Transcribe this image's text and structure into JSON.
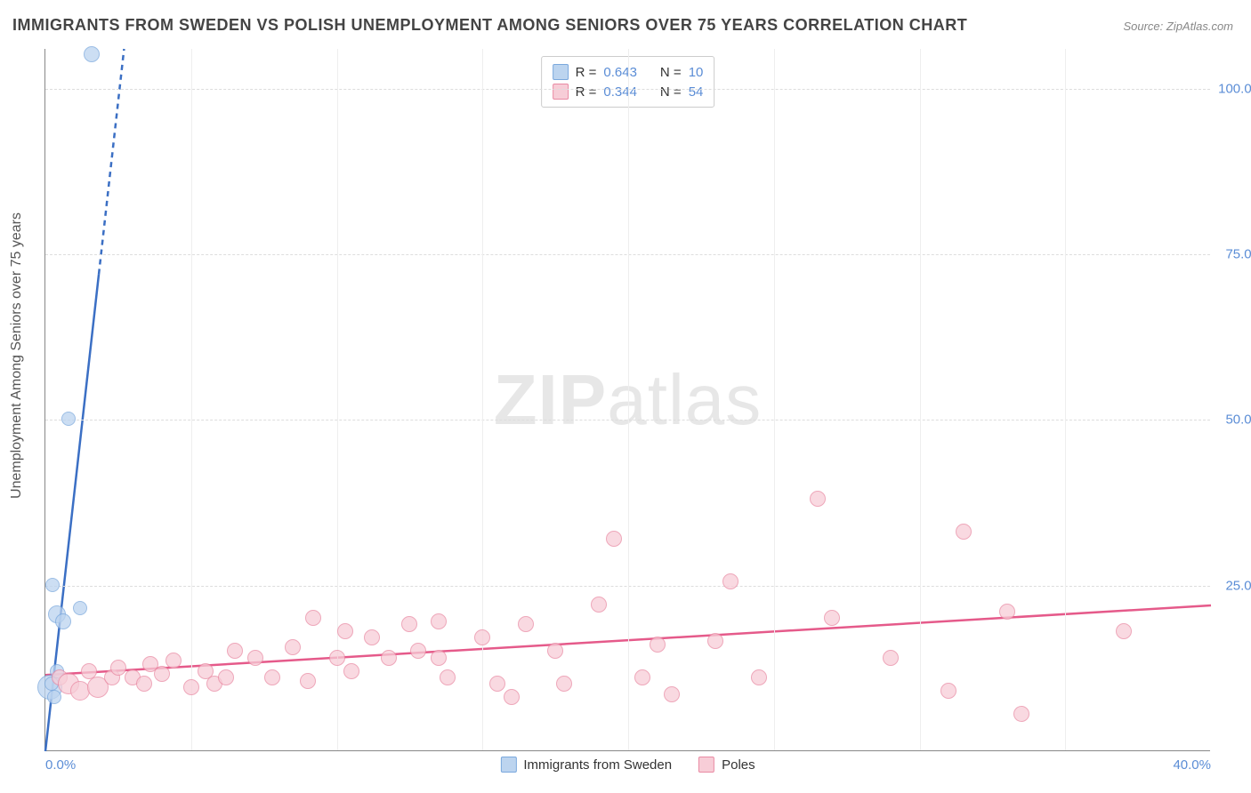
{
  "title": "IMMIGRANTS FROM SWEDEN VS POLISH UNEMPLOYMENT AMONG SENIORS OVER 75 YEARS CORRELATION CHART",
  "source_label": "Source: ZipAtlas.com",
  "ylabel": "Unemployment Among Seniors over 75 years",
  "watermark_bold": "ZIP",
  "watermark_rest": "atlas",
  "chart": {
    "type": "scatter",
    "background_color": "#ffffff",
    "grid_color": "#dddddd",
    "axis_color": "#888888",
    "tick_color": "#5b8dd6",
    "tick_fontsize": 15,
    "label_fontsize": 16,
    "xlim": [
      0,
      40
    ],
    "ylim": [
      0,
      106
    ],
    "xticks": [
      0,
      40
    ],
    "xtick_labels": [
      "0.0%",
      "40.0%"
    ],
    "yticks": [
      25,
      50,
      75,
      100
    ],
    "ytick_labels": [
      "25.0%",
      "50.0%",
      "75.0%",
      "100.0%"
    ],
    "series": [
      {
        "name": "Immigrants from Sweden",
        "marker_fill": "#bcd4ef",
        "marker_stroke": "#7aa8dd",
        "marker_opacity": 0.75,
        "trend_color": "#3b6fc4",
        "trend_width": 2.5,
        "trend_dash_after_y": 72,
        "R": "0.643",
        "N": "10",
        "trend": {
          "x1": 0,
          "y1": 0,
          "x2": 2.7,
          "y2": 106
        },
        "points": [
          {
            "x": 0.15,
            "y": 9.5,
            "r": 14
          },
          {
            "x": 0.2,
            "y": 10,
            "r": 8
          },
          {
            "x": 0.3,
            "y": 8,
            "r": 8
          },
          {
            "x": 0.4,
            "y": 12,
            "r": 8
          },
          {
            "x": 0.4,
            "y": 20.5,
            "r": 10
          },
          {
            "x": 0.6,
            "y": 19.5,
            "r": 9
          },
          {
            "x": 0.25,
            "y": 25,
            "r": 8
          },
          {
            "x": 1.2,
            "y": 21.5,
            "r": 8
          },
          {
            "x": 0.8,
            "y": 50,
            "r": 8
          },
          {
            "x": 1.6,
            "y": 105,
            "r": 9
          }
        ]
      },
      {
        "name": "Poles",
        "marker_fill": "#f7cdd7",
        "marker_stroke": "#e98aa3",
        "marker_opacity": 0.75,
        "trend_color": "#e55a8a",
        "trend_width": 2.5,
        "R": "0.344",
        "N": "54",
        "trend": {
          "x1": 0,
          "y1": 11.5,
          "x2": 40,
          "y2": 22
        },
        "points": [
          {
            "x": 0.5,
            "y": 11,
            "r": 9
          },
          {
            "x": 0.8,
            "y": 10,
            "r": 12
          },
          {
            "x": 1.2,
            "y": 9,
            "r": 11
          },
          {
            "x": 1.8,
            "y": 9.5,
            "r": 12
          },
          {
            "x": 1.5,
            "y": 12,
            "r": 9
          },
          {
            "x": 2.3,
            "y": 11,
            "r": 9
          },
          {
            "x": 2.5,
            "y": 12.5,
            "r": 9
          },
          {
            "x": 3.0,
            "y": 11,
            "r": 9
          },
          {
            "x": 3.4,
            "y": 10,
            "r": 9
          },
          {
            "x": 3.6,
            "y": 13,
            "r": 9
          },
          {
            "x": 4.0,
            "y": 11.5,
            "r": 9
          },
          {
            "x": 4.4,
            "y": 13.5,
            "r": 9
          },
          {
            "x": 5.0,
            "y": 9.5,
            "r": 9
          },
          {
            "x": 5.5,
            "y": 12,
            "r": 9
          },
          {
            "x": 5.8,
            "y": 10,
            "r": 9
          },
          {
            "x": 6.2,
            "y": 11,
            "r": 9
          },
          {
            "x": 6.5,
            "y": 15,
            "r": 9
          },
          {
            "x": 7.2,
            "y": 14,
            "r": 9
          },
          {
            "x": 7.8,
            "y": 11,
            "r": 9
          },
          {
            "x": 8.5,
            "y": 15.5,
            "r": 9
          },
          {
            "x": 9.0,
            "y": 10.5,
            "r": 9
          },
          {
            "x": 9.2,
            "y": 20,
            "r": 9
          },
          {
            "x": 10.0,
            "y": 14,
            "r": 9
          },
          {
            "x": 10.3,
            "y": 18,
            "r": 9
          },
          {
            "x": 10.5,
            "y": 12,
            "r": 9
          },
          {
            "x": 11.2,
            "y": 17,
            "r": 9
          },
          {
            "x": 11.8,
            "y": 14,
            "r": 9
          },
          {
            "x": 12.5,
            "y": 19,
            "r": 9
          },
          {
            "x": 12.8,
            "y": 15,
            "r": 9
          },
          {
            "x": 13.5,
            "y": 14,
            "r": 9
          },
          {
            "x": 13.5,
            "y": 19.5,
            "r": 9
          },
          {
            "x": 13.8,
            "y": 11,
            "r": 9
          },
          {
            "x": 15.0,
            "y": 17,
            "r": 9
          },
          {
            "x": 15.5,
            "y": 10,
            "r": 9
          },
          {
            "x": 16.0,
            "y": 8,
            "r": 9
          },
          {
            "x": 16.5,
            "y": 19,
            "r": 9
          },
          {
            "x": 17.5,
            "y": 15,
            "r": 9
          },
          {
            "x": 17.8,
            "y": 10,
            "r": 9
          },
          {
            "x": 19.0,
            "y": 22,
            "r": 9
          },
          {
            "x": 19.5,
            "y": 32,
            "r": 9
          },
          {
            "x": 20.5,
            "y": 11,
            "r": 9
          },
          {
            "x": 21.0,
            "y": 16,
            "r": 9
          },
          {
            "x": 21.5,
            "y": 8.5,
            "r": 9
          },
          {
            "x": 23.0,
            "y": 16.5,
            "r": 9
          },
          {
            "x": 23.5,
            "y": 25.5,
            "r": 9
          },
          {
            "x": 24.5,
            "y": 11,
            "r": 9
          },
          {
            "x": 26.5,
            "y": 38,
            "r": 9
          },
          {
            "x": 27.0,
            "y": 20,
            "r": 9
          },
          {
            "x": 29.0,
            "y": 14,
            "r": 9
          },
          {
            "x": 31.0,
            "y": 9,
            "r": 9
          },
          {
            "x": 31.5,
            "y": 33,
            "r": 9
          },
          {
            "x": 33.0,
            "y": 21,
            "r": 9
          },
          {
            "x": 33.5,
            "y": 5.5,
            "r": 9
          },
          {
            "x": 37.0,
            "y": 18,
            "r": 9
          }
        ]
      }
    ],
    "legend_bottom": [
      {
        "swatch_fill": "#bcd4ef",
        "swatch_stroke": "#7aa8dd",
        "label": "Immigrants from Sweden"
      },
      {
        "swatch_fill": "#f7cdd7",
        "swatch_stroke": "#e98aa3",
        "label": "Poles"
      }
    ],
    "legend_top_labels": {
      "R": "R =",
      "N": "N ="
    }
  }
}
